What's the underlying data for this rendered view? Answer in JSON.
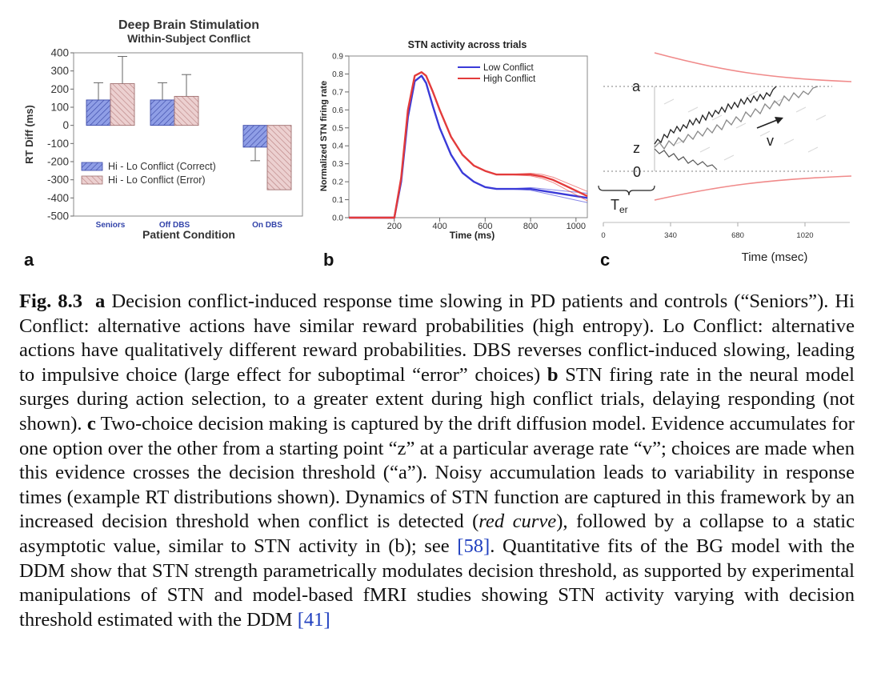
{
  "figure": {
    "panel_a": {
      "letter": "a",
      "title_line1": "Deep Brain Stimulation",
      "title_line2": "Within-Subject Conflict",
      "ylabel": "RT Diff (ms)",
      "xlabel": "Patient Condition",
      "legend": [
        "Hi - Lo Conflict (Correct)",
        "Hi - Lo Conflict (Error)"
      ]
    },
    "panel_b": {
      "letter": "b",
      "title": "STN activity across trials",
      "ylabel": "Normalized STN firing rate",
      "xlabel": "Time (ms)",
      "legend": [
        "Low Conflict",
        "High Conflict"
      ]
    },
    "panel_c": {
      "letter": "c",
      "label_a": "a",
      "label_z": "z",
      "label_0": "0",
      "label_v": "v",
      "label_ter": "T",
      "label_ter_sub": "er",
      "xlabel": "Time (msec)",
      "xticks": [
        "0",
        "340",
        "680",
        "1020"
      ]
    }
  },
  "chart_data": [
    {
      "type": "bar",
      "title": "Deep Brain Stimulation Within-Subject Conflict",
      "xlabel": "Patient Condition",
      "ylabel": "RT Diff (ms)",
      "categories": [
        "Seniors",
        "Off DBS",
        "On DBS"
      ],
      "series": [
        {
          "name": "Hi - Lo Conflict (Correct)",
          "values": [
            140,
            140,
            -120
          ],
          "error": [
            95,
            95,
            75
          ],
          "color": "#7f8fdc"
        },
        {
          "name": "Hi - Lo Conflict (Error)",
          "values": [
            230,
            160,
            -355
          ],
          "error": [
            150,
            120,
            0
          ],
          "color": "#e3b7b7"
        }
      ],
      "ylim": [
        -500,
        400
      ],
      "yticks": [
        400,
        300,
        200,
        100,
        0,
        -100,
        -200,
        -300,
        -400,
        -500
      ],
      "legend": "bottom-left"
    },
    {
      "type": "line",
      "title": "STN activity across trials",
      "xlabel": "Time (ms)",
      "ylabel": "Normalized STN firing rate",
      "xlim": [
        0,
        1050
      ],
      "ylim": [
        0,
        0.9
      ],
      "xticks": [
        200,
        400,
        600,
        800,
        1000
      ],
      "yticks": [
        0.0,
        0.1,
        0.2,
        0.3,
        0.4,
        0.5,
        0.6,
        0.7,
        0.8,
        0.9
      ],
      "series": [
        {
          "name": "Low Conflict",
          "color": "#3a3ad8",
          "x": [
            0,
            200,
            230,
            260,
            290,
            320,
            340,
            370,
            400,
            450,
            500,
            550,
            600,
            650,
            700,
            750,
            800,
            850,
            900,
            950,
            1000,
            1050
          ],
          "y": [
            0.0,
            0.0,
            0.2,
            0.56,
            0.76,
            0.79,
            0.75,
            0.62,
            0.5,
            0.35,
            0.25,
            0.2,
            0.17,
            0.16,
            0.16,
            0.16,
            0.16,
            0.15,
            0.14,
            0.13,
            0.12,
            0.11
          ]
        },
        {
          "name": "High Conflict",
          "color": "#e33b3b",
          "x": [
            0,
            200,
            230,
            260,
            290,
            320,
            340,
            370,
            400,
            450,
            500,
            550,
            600,
            650,
            700,
            750,
            800,
            850,
            900,
            950,
            1000,
            1050
          ],
          "y": [
            0.0,
            0.0,
            0.22,
            0.6,
            0.79,
            0.81,
            0.79,
            0.7,
            0.6,
            0.45,
            0.35,
            0.29,
            0.26,
            0.24,
            0.24,
            0.24,
            0.24,
            0.23,
            0.21,
            0.18,
            0.15,
            0.12
          ]
        }
      ],
      "legend": "top-right"
    }
  ],
  "caption": {
    "lead": "Fig. 8.3",
    "s1_label": "a",
    "s1": " Decision conflict-induced response time slowing in PD patients and controls (“Seniors”). Hi Conflict: alternative actions have similar reward probabilities (high entropy). Lo Conflict: alternative actions have qualitatively different reward probabilities. DBS reverses conflict-induced slowing, leading to impulsive choice (large effect for suboptimal “error” choices) ",
    "s2_label": "b",
    "s2": " STN firing rate in the neural model surges during action selection, to a greater extent during high conflict trials, delaying responding (not shown). ",
    "s3_label": "c",
    "s3": " Two-choice decision making is captured by the drift diffusion model. Evidence accumulates for one option over the other from a starting point “z” at a particular average rate “v”; choices are made when this evidence crosses the decision threshold (“a”). Noisy accumulation leads to variability in response times (example RT distributions shown). Dynamics of STN function are captured in this framework by an increased decision threshold when conflict is detected (",
    "red_curve": "red curve",
    "s4": "), followed by a collapse to a static asymptotic value, similar to STN activity in (b); see ",
    "ref1": "[58]",
    "s5": ". Quantitative fits of the BG model with the DDM show that STN strength parametrically modulates decision threshold, as supported by experimental manipulations of STN and model-based fMRI studies showing STN activity varying with decision threshold estimated with the DDM ",
    "ref2": "[41]"
  }
}
